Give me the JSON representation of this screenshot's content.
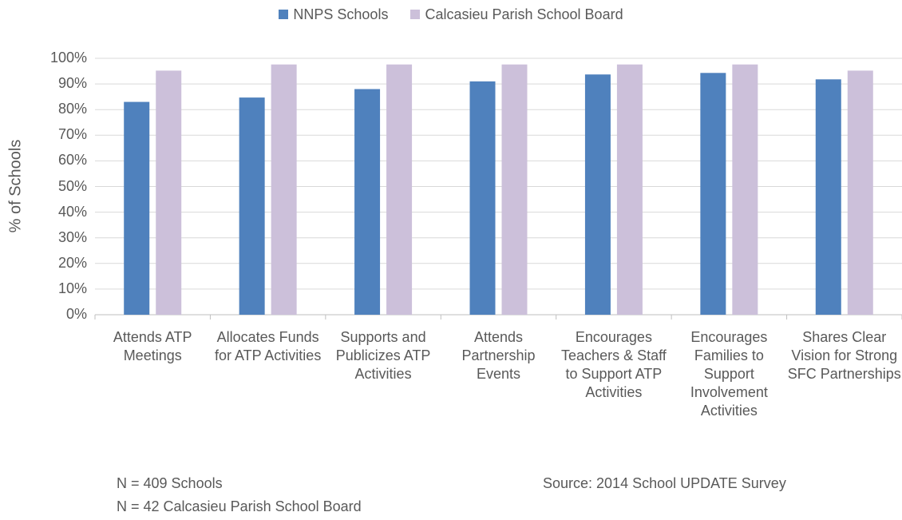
{
  "chart_data": {
    "type": "bar",
    "y_label": "% of Schools",
    "categories": [
      "Attends ATP Meetings",
      "Allocates Funds for ATP Activities",
      "Supports and Publicizes ATP Activities",
      "Attends Partnership Events",
      "Encourages Teachers & Staff to Support ATP Activities",
      "Encourages Families to Support Involvement Activities",
      "Shares Clear Vision for Strong SFC Partnerships"
    ],
    "series": [
      {
        "name": "NNPS Schools",
        "color": "#4f81bd",
        "values": [
          83,
          84.7,
          88,
          91,
          93.7,
          94.3,
          91.8
        ]
      },
      {
        "name": "Calcasieu Parish School Board",
        "color": "#ccc0da",
        "values": [
          95.2,
          97.6,
          97.6,
          97.6,
          97.6,
          97.6,
          95.2
        ]
      }
    ],
    "ylim": [
      0,
      100
    ],
    "yticks": [
      {
        "value": 0,
        "label": "0%"
      },
      {
        "value": 10,
        "label": "10%"
      },
      {
        "value": 20,
        "label": "20%"
      },
      {
        "value": 30,
        "label": "30%"
      },
      {
        "value": 40,
        "label": "40%"
      },
      {
        "value": 50,
        "label": "50%"
      },
      {
        "value": 60,
        "label": "60%"
      },
      {
        "value": 70,
        "label": "70%"
      },
      {
        "value": 80,
        "label": "80%"
      },
      {
        "value": 90,
        "label": "90%"
      },
      {
        "value": 100,
        "label": "100%"
      }
    ],
    "grid": true,
    "legend": "top",
    "notes": [
      "N = 409 Schools",
      "N = 42 Calcasieu Parish School Board"
    ],
    "source": "Source: 2014 School UPDATE Survey"
  }
}
